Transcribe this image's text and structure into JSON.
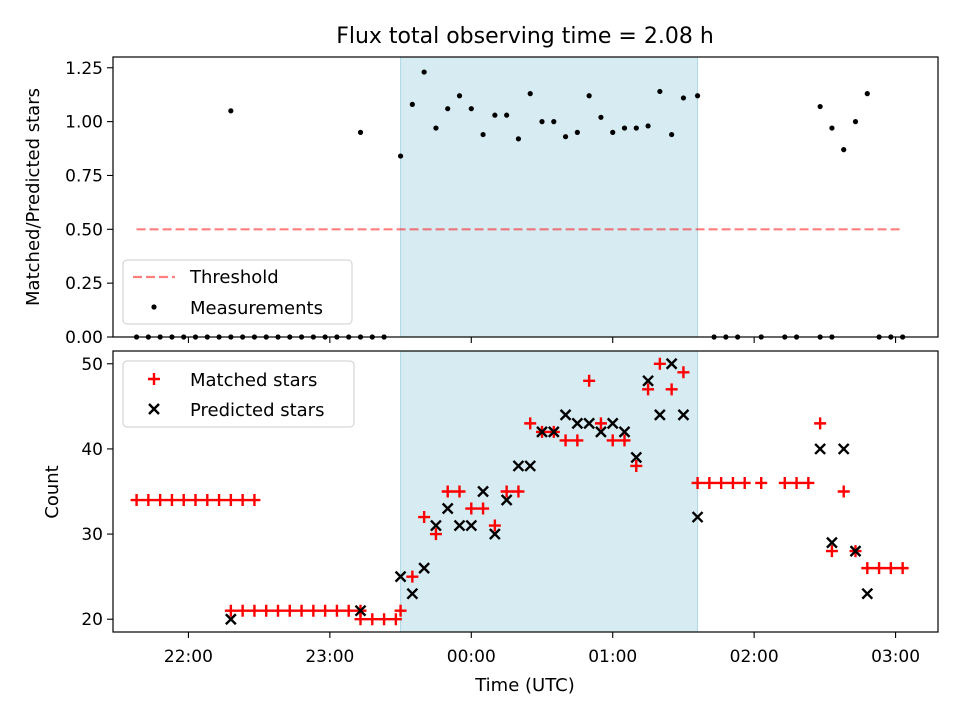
{
  "colors": {
    "shade": "#add8e6",
    "threshold": "#ff0000",
    "measurement": "#000000",
    "matched": "#ff0000",
    "predicted": "#000000"
  },
  "chart_data": [
    {
      "type": "scatter",
      "title": "Flux total observing time = 2.08 h",
      "ylabel": "Matched/Predicted stars",
      "xlabel": "",
      "xlim": [
        "21:28",
        "03:18"
      ],
      "ylim": [
        0,
        1.3
      ],
      "yticks": [
        0.0,
        0.25,
        0.5,
        0.75,
        1.0,
        1.25
      ],
      "ytick_labels": [
        "0.00",
        "0.25",
        "0.50",
        "0.75",
        "1.00",
        "1.25"
      ],
      "shaded_interval": [
        "23:30",
        "01:36"
      ],
      "legend_position": "lower-left",
      "series": [
        {
          "name": "Threshold",
          "style": "dashed-line",
          "points": [
            [
              "21:38",
              0.5
            ],
            [
              "03:03",
              0.5
            ]
          ]
        },
        {
          "name": "Measurements",
          "style": "dots",
          "points": [
            [
              "21:38",
              0.0
            ],
            [
              "21:43",
              0.0
            ],
            [
              "21:48",
              0.0
            ],
            [
              "21:53",
              0.0
            ],
            [
              "21:58",
              0.0
            ],
            [
              "22:03",
              0.0
            ],
            [
              "22:08",
              0.0
            ],
            [
              "22:13",
              0.0
            ],
            [
              "22:18",
              0.0
            ],
            [
              "22:23",
              0.0
            ],
            [
              "22:28",
              0.0
            ],
            [
              "22:33",
              0.0
            ],
            [
              "22:38",
              0.0
            ],
            [
              "22:43",
              0.0
            ],
            [
              "22:48",
              0.0
            ],
            [
              "22:53",
              0.0
            ],
            [
              "22:58",
              0.0
            ],
            [
              "23:03",
              0.0
            ],
            [
              "23:08",
              0.0
            ],
            [
              "23:13",
              0.0
            ],
            [
              "23:18",
              0.0
            ],
            [
              "23:23",
              0.0
            ],
            [
              "22:18",
              1.05
            ],
            [
              "23:13",
              0.95
            ],
            [
              "23:30",
              0.84
            ],
            [
              "23:35",
              1.08
            ],
            [
              "23:40",
              1.23
            ],
            [
              "23:45",
              0.97
            ],
            [
              "23:50",
              1.06
            ],
            [
              "23:55",
              1.12
            ],
            [
              "00:00",
              1.06
            ],
            [
              "00:05",
              0.94
            ],
            [
              "00:10",
              1.03
            ],
            [
              "00:15",
              1.03
            ],
            [
              "00:20",
              0.92
            ],
            [
              "00:25",
              1.13
            ],
            [
              "00:30",
              1.0
            ],
            [
              "00:35",
              1.0
            ],
            [
              "00:40",
              0.93
            ],
            [
              "00:45",
              0.95
            ],
            [
              "00:50",
              1.12
            ],
            [
              "00:55",
              1.02
            ],
            [
              "01:00",
              0.95
            ],
            [
              "01:05",
              0.97
            ],
            [
              "01:10",
              0.97
            ],
            [
              "01:15",
              0.98
            ],
            [
              "01:20",
              1.14
            ],
            [
              "01:25",
              0.94
            ],
            [
              "01:30",
              1.11
            ],
            [
              "01:36",
              1.12
            ],
            [
              "01:43",
              0.0
            ],
            [
              "01:48",
              0.0
            ],
            [
              "01:53",
              0.0
            ],
            [
              "02:03",
              0.0
            ],
            [
              "02:13",
              0.0
            ],
            [
              "02:18",
              0.0
            ],
            [
              "02:28",
              0.0
            ],
            [
              "02:33",
              0.0
            ],
            [
              "02:28",
              1.07
            ],
            [
              "02:33",
              0.97
            ],
            [
              "02:38",
              0.87
            ],
            [
              "02:43",
              1.0
            ],
            [
              "02:48",
              1.13
            ],
            [
              "02:53",
              0.0
            ],
            [
              "02:58",
              0.0
            ],
            [
              "03:03",
              0.0
            ]
          ]
        }
      ]
    },
    {
      "type": "scatter",
      "title": "",
      "ylabel": "Count",
      "xlabel": "Time (UTC)",
      "xlim": [
        "21:28",
        "03:18"
      ],
      "ylim": [
        18.5,
        51.5
      ],
      "yticks": [
        20,
        30,
        40,
        50
      ],
      "ytick_labels": [
        "20",
        "30",
        "40",
        "50"
      ],
      "xticks": [
        "22:00",
        "23:00",
        "00:00",
        "01:00",
        "02:00",
        "03:00"
      ],
      "shaded_interval": [
        "23:30",
        "01:36"
      ],
      "legend_position": "upper-left",
      "series": [
        {
          "name": "Matched stars",
          "style": "plus",
          "points": [
            [
              "21:38",
              34
            ],
            [
              "21:43",
              34
            ],
            [
              "21:48",
              34
            ],
            [
              "21:53",
              34
            ],
            [
              "21:58",
              34
            ],
            [
              "22:03",
              34
            ],
            [
              "22:08",
              34
            ],
            [
              "22:13",
              34
            ],
            [
              "22:18",
              34
            ],
            [
              "22:23",
              34
            ],
            [
              "22:28",
              34
            ],
            [
              "22:18",
              21
            ],
            [
              "22:23",
              21
            ],
            [
              "22:28",
              21
            ],
            [
              "22:33",
              21
            ],
            [
              "22:38",
              21
            ],
            [
              "22:43",
              21
            ],
            [
              "22:48",
              21
            ],
            [
              "22:53",
              21
            ],
            [
              "22:58",
              21
            ],
            [
              "23:03",
              21
            ],
            [
              "23:08",
              21
            ],
            [
              "23:13",
              21
            ],
            [
              "23:13",
              20
            ],
            [
              "23:18",
              20
            ],
            [
              "23:23",
              20
            ],
            [
              "23:28",
              20
            ],
            [
              "23:30",
              21
            ],
            [
              "23:35",
              25
            ],
            [
              "23:40",
              32
            ],
            [
              "23:45",
              30
            ],
            [
              "23:50",
              35
            ],
            [
              "23:55",
              35
            ],
            [
              "00:00",
              33
            ],
            [
              "00:05",
              33
            ],
            [
              "00:10",
              31
            ],
            [
              "00:15",
              35
            ],
            [
              "00:20",
              35
            ],
            [
              "00:25",
              43
            ],
            [
              "00:30",
              42
            ],
            [
              "00:35",
              42
            ],
            [
              "00:40",
              41
            ],
            [
              "00:45",
              41
            ],
            [
              "00:50",
              48
            ],
            [
              "00:55",
              43
            ],
            [
              "01:00",
              41
            ],
            [
              "01:05",
              41
            ],
            [
              "01:10",
              38
            ],
            [
              "01:15",
              47
            ],
            [
              "01:20",
              50
            ],
            [
              "01:25",
              47
            ],
            [
              "01:30",
              49
            ],
            [
              "01:36",
              36
            ],
            [
              "01:41",
              36
            ],
            [
              "01:46",
              36
            ],
            [
              "01:51",
              36
            ],
            [
              "01:56",
              36
            ],
            [
              "02:03",
              36
            ],
            [
              "02:13",
              36
            ],
            [
              "02:18",
              36
            ],
            [
              "02:23",
              36
            ],
            [
              "02:28",
              43
            ],
            [
              "02:33",
              28
            ],
            [
              "02:38",
              35
            ],
            [
              "02:43",
              28
            ],
            [
              "02:48",
              26
            ],
            [
              "02:53",
              26
            ],
            [
              "02:58",
              26
            ],
            [
              "03:03",
              26
            ]
          ]
        },
        {
          "name": "Predicted stars",
          "style": "cross",
          "points": [
            [
              "22:18",
              20
            ],
            [
              "23:13",
              21
            ],
            [
              "23:30",
              25
            ],
            [
              "23:35",
              23
            ],
            [
              "23:40",
              26
            ],
            [
              "23:45",
              31
            ],
            [
              "23:50",
              33
            ],
            [
              "23:55",
              31
            ],
            [
              "00:00",
              31
            ],
            [
              "00:05",
              35
            ],
            [
              "00:10",
              30
            ],
            [
              "00:15",
              34
            ],
            [
              "00:20",
              38
            ],
            [
              "00:25",
              38
            ],
            [
              "00:30",
              42
            ],
            [
              "00:35",
              42
            ],
            [
              "00:40",
              44
            ],
            [
              "00:45",
              43
            ],
            [
              "00:50",
              43
            ],
            [
              "00:55",
              42
            ],
            [
              "01:00",
              43
            ],
            [
              "01:05",
              42
            ],
            [
              "01:10",
              39
            ],
            [
              "01:15",
              48
            ],
            [
              "01:20",
              44
            ],
            [
              "01:25",
              50
            ],
            [
              "01:30",
              44
            ],
            [
              "01:36",
              32
            ],
            [
              "02:28",
              40
            ],
            [
              "02:33",
              29
            ],
            [
              "02:38",
              40
            ],
            [
              "02:43",
              28
            ],
            [
              "02:48",
              23
            ]
          ]
        }
      ]
    }
  ]
}
